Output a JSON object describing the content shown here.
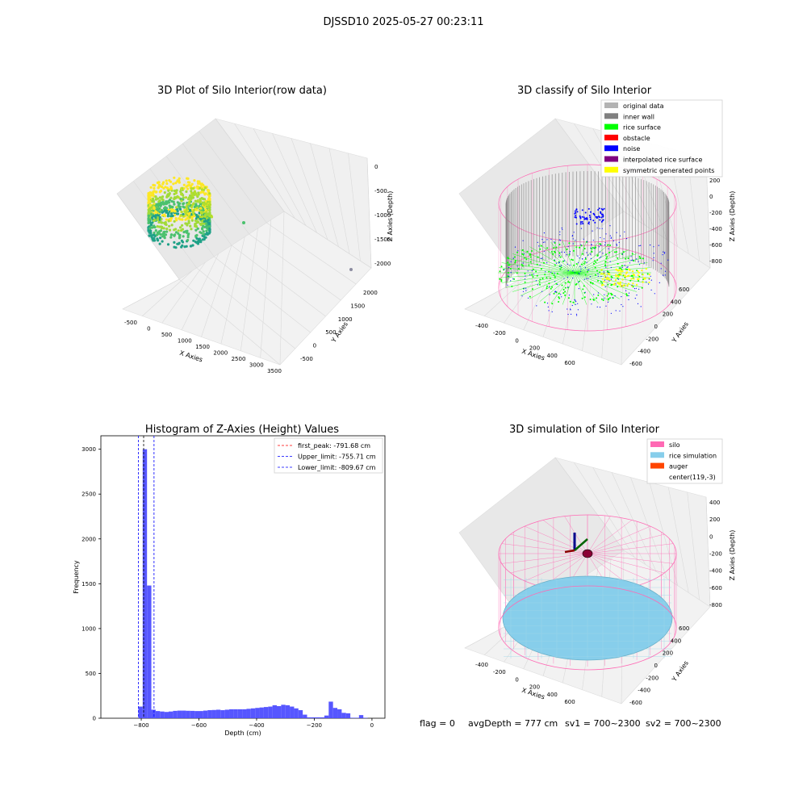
{
  "figure": {
    "suptitle": "DJSSD10 2025-05-27 00:23:11",
    "footer": {
      "flag": "flag = 0",
      "avg_depth": "avgDepth = 777 cm",
      "sv1": "sv1 = 700~2300",
      "sv2": "sv2 = 700~2300"
    }
  },
  "colors": {
    "original_data": "#b3b3b3",
    "inner_wall": "#808080",
    "rice_surface": "#00ff00",
    "obstacle": "#ff0000",
    "noise": "#0000ff",
    "interpolated_rice_surface": "#800080",
    "symmetric_generated_points": "#ffff00",
    "silo": "#ff69b4",
    "rice_simulation": "#87ceeb",
    "auger": "#ff4500",
    "hist_bar": "#4d4dff",
    "first_peak_line": "#ff0000",
    "limit_line": "#0000ff"
  },
  "chart_data": [
    {
      "type": "scatter",
      "title": "3D Plot of Silo Interior(row data)",
      "xlabel": "X Axies",
      "ylabel": "Y Axies",
      "zlabel": "Z Axies (Depth)",
      "xticks": [
        "-500",
        "0",
        "500",
        "1000",
        "1500",
        "2000",
        "2500",
        "3000",
        "3500"
      ],
      "yticks": [
        "-500",
        "0",
        "500",
        "1000",
        "1500",
        "2000"
      ],
      "zticks": [
        "0",
        "-500",
        "-1000",
        "-1500",
        "-2000"
      ],
      "xlim": [
        -600,
        3600
      ],
      "ylim": [
        -600,
        2300
      ],
      "zlim": [
        -2200,
        100
      ],
      "outliers": [
        [
          1900,
          600,
          -1000
        ],
        [
          3300,
          2100,
          -2000
        ]
      ],
      "colormap": "viridis"
    },
    {
      "type": "scatter",
      "title": "3D classify of Silo Interior",
      "xlabel": "X Axies",
      "ylabel": "Y Axies",
      "zlabel": "Z Axies (Depth)",
      "xticks": [
        "-400",
        "-200",
        "0",
        "200",
        "400",
        "600"
      ],
      "yticks": [
        "-600",
        "-400",
        "-200",
        "0",
        "200",
        "400",
        "600"
      ],
      "zticks": [
        "200",
        "0",
        "-200",
        "-400",
        "-600",
        "-800"
      ],
      "legend": [
        {
          "label": "original data",
          "color_key": "original_data"
        },
        {
          "label": "inner wall",
          "color_key": "inner_wall"
        },
        {
          "label": "rice surface",
          "color_key": "rice_surface"
        },
        {
          "label": "obstacle",
          "color_key": "obstacle"
        },
        {
          "label": "noise",
          "color_key": "noise"
        },
        {
          "label": "interpolated rice surface",
          "color_key": "interpolated_rice_surface"
        },
        {
          "label": "symmetric generated points",
          "color_key": "symmetric_generated_points"
        }
      ],
      "legend_position": "top-right"
    },
    {
      "type": "bar",
      "title": "Histogram of Z-Axies (Height) Values",
      "xlabel": "Depth (cm)",
      "ylabel": "Frequency",
      "xlim": [
        -940,
        45
      ],
      "ylim": [
        0,
        3150
      ],
      "xticks": [
        -800,
        -600,
        -400,
        -200,
        0
      ],
      "yticks": [
        0,
        500,
        1000,
        1500,
        2000,
        2500,
        3000
      ],
      "bins": [
        [
          -810,
          -795,
          130
        ],
        [
          -795,
          -780,
          3000
        ],
        [
          -780,
          -765,
          1480
        ],
        [
          -765,
          -750,
          95
        ],
        [
          -750,
          -735,
          80
        ],
        [
          -735,
          -720,
          75
        ],
        [
          -720,
          -705,
          70
        ],
        [
          -705,
          -690,
          75
        ],
        [
          -690,
          -675,
          82
        ],
        [
          -675,
          -660,
          85
        ],
        [
          -660,
          -645,
          85
        ],
        [
          -645,
          -630,
          83
        ],
        [
          -630,
          -615,
          82
        ],
        [
          -615,
          -600,
          80
        ],
        [
          -600,
          -585,
          80
        ],
        [
          -585,
          -570,
          85
        ],
        [
          -570,
          -555,
          90
        ],
        [
          -555,
          -540,
          92
        ],
        [
          -540,
          -525,
          95
        ],
        [
          -525,
          -510,
          90
        ],
        [
          -510,
          -495,
          95
        ],
        [
          -495,
          -480,
          100
        ],
        [
          -480,
          -465,
          100
        ],
        [
          -465,
          -450,
          100
        ],
        [
          -450,
          -435,
          100
        ],
        [
          -435,
          -420,
          105
        ],
        [
          -420,
          -405,
          110
        ],
        [
          -405,
          -390,
          115
        ],
        [
          -390,
          -375,
          120
        ],
        [
          -375,
          -360,
          125
        ],
        [
          -360,
          -345,
          130
        ],
        [
          -345,
          -330,
          145
        ],
        [
          -330,
          -315,
          135
        ],
        [
          -315,
          -300,
          150
        ],
        [
          -300,
          -285,
          145
        ],
        [
          -285,
          -270,
          130
        ],
        [
          -270,
          -255,
          110
        ],
        [
          -255,
          -240,
          90
        ],
        [
          -240,
          -225,
          40
        ],
        [
          -225,
          -210,
          10
        ],
        [
          -210,
          -195,
          10
        ],
        [
          -195,
          -180,
          10
        ],
        [
          -180,
          -165,
          10
        ],
        [
          -165,
          -150,
          30
        ],
        [
          -150,
          -135,
          185
        ],
        [
          -135,
          -120,
          115
        ],
        [
          -120,
          -105,
          100
        ],
        [
          -105,
          -90,
          60
        ],
        [
          -90,
          -75,
          55
        ],
        [
          -75,
          -60,
          5
        ],
        [
          -60,
          -45,
          5
        ],
        [
          -45,
          -30,
          35
        ],
        [
          -30,
          -15,
          5
        ]
      ],
      "vlines": [
        {
          "label": "first_peak: -791.68 cm",
          "value": -791.68,
          "color_key": "first_peak_line"
        },
        {
          "label": "Upper_limit: -755.71 cm",
          "value": -755.71,
          "color_key": "limit_line"
        },
        {
          "label": "Lower_limit: -809.67 cm",
          "value": -809.67,
          "color_key": "limit_line"
        }
      ],
      "legend_position": "top-right"
    },
    {
      "type": "scatter",
      "title": "3D simulation of Silo Interior",
      "xlabel": "X Axies",
      "ylabel": "Y Axies",
      "zlabel": "Z Axies (Depth)",
      "xticks": [
        "-400",
        "-200",
        "0",
        "200",
        "400",
        "600"
      ],
      "yticks": [
        "-600",
        "-400",
        "-200",
        "0",
        "200",
        "400",
        "600"
      ],
      "zticks": [
        "400",
        "200",
        "0",
        "-200",
        "-400",
        "-600",
        "-800"
      ],
      "legend": [
        {
          "label": "silo",
          "color_key": "silo"
        },
        {
          "label": "rice simulation",
          "color_key": "rice_simulation"
        },
        {
          "label": "auger",
          "color_key": "auger"
        },
        {
          "label": "center(119,-3)",
          "color_key": ""
        }
      ],
      "legend_position": "top-right"
    }
  ]
}
